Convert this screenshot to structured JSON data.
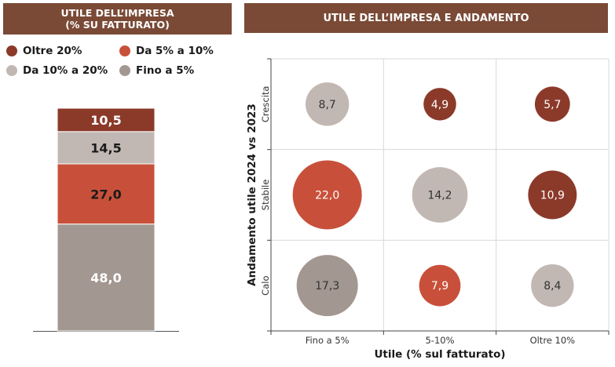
{
  "headers": {
    "left": [
      "UTILE DELL’IMPRESA",
      "(% SU FATTURATO)"
    ],
    "right": "UTILE DELL’IMPRESA E ANDAMENTO"
  },
  "legend": [
    {
      "label": "Oltre 20%",
      "color": "#8b3a2a"
    },
    {
      "label": "Da 5% a 10%",
      "color": "#c8503a"
    },
    {
      "label": "Da 10% a 20%",
      "color": "#c2b8b3"
    },
    {
      "label": "Fino a 5%",
      "color": "#a39791"
    }
  ],
  "chart_data": [
    {
      "type": "bar",
      "stacked": true,
      "categories": [
        ""
      ],
      "ylim": [
        0,
        100
      ],
      "series": [
        {
          "name": "Fino a 5%",
          "values": [
            48.0
          ],
          "color": "#a39791",
          "label": "48,0",
          "label_color": "#ffffff"
        },
        {
          "name": "Da 5% a 10%",
          "values": [
            27.0
          ],
          "color": "#c8503a",
          "label": "27,0",
          "label_color": "#1a1a1a"
        },
        {
          "name": "Da 10% a 20%",
          "values": [
            14.5
          ],
          "color": "#c2b8b3",
          "label": "14,5",
          "label_color": "#1a1a1a"
        },
        {
          "name": "Oltre 20%",
          "values": [
            10.5
          ],
          "color": "#8b3a2a",
          "label": "10,5",
          "label_color": "#ffffff"
        }
      ]
    },
    {
      "type": "scatter",
      "subtype": "bubble-matrix",
      "xlabel": "Utile (% sul fatturato)",
      "ylabel": "Andamento utile  2024 vs 2023",
      "x_categories": [
        "Fino a 5%",
        "5-10%",
        "Oltre 10%"
      ],
      "y_categories": [
        "Calo",
        "Stabile",
        "Crescita"
      ],
      "grid": true,
      "points": [
        {
          "x": "Fino a 5%",
          "y": "Crescita",
          "value": 8.7,
          "label": "8,7",
          "color": "#c2b8b3",
          "text_color": "#333333"
        },
        {
          "x": "5-10%",
          "y": "Crescita",
          "value": 4.9,
          "label": "4,9",
          "color": "#8b3a2a",
          "text_color": "#ffffff"
        },
        {
          "x": "Oltre 10%",
          "y": "Crescita",
          "value": 5.7,
          "label": "5,7",
          "color": "#8b3a2a",
          "text_color": "#ffffff"
        },
        {
          "x": "Fino a 5%",
          "y": "Stabile",
          "value": 22.0,
          "label": "22,0",
          "color": "#c8503a",
          "text_color": "#ffffff"
        },
        {
          "x": "5-10%",
          "y": "Stabile",
          "value": 14.2,
          "label": "14,2",
          "color": "#c2b8b3",
          "text_color": "#333333"
        },
        {
          "x": "Oltre 10%",
          "y": "Stabile",
          "value": 10.9,
          "label": "10,9",
          "color": "#8b3a2a",
          "text_color": "#ffffff"
        },
        {
          "x": "Fino a 5%",
          "y": "Calo",
          "value": 17.3,
          "label": "17,3",
          "color": "#a39791",
          "text_color": "#333333"
        },
        {
          "x": "5-10%",
          "y": "Calo",
          "value": 7.9,
          "label": "7,9",
          "color": "#c8503a",
          "text_color": "#ffffff"
        },
        {
          "x": "Oltre 10%",
          "y": "Calo",
          "value": 8.4,
          "label": "8,4",
          "color": "#c2b8b3",
          "text_color": "#333333"
        }
      ]
    }
  ]
}
